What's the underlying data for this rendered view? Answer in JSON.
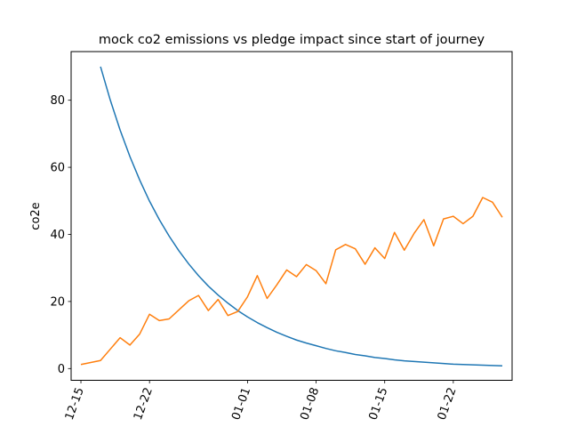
{
  "chart_data": {
    "type": "line",
    "title": "mock co2 emissions vs pledge impact since start of journey",
    "xlabel": "",
    "ylabel": "co2e",
    "x_type": "date",
    "xlim": [
      "2023-12-14",
      "2024-01-28"
    ],
    "ylim": [
      -3.5,
      94.5
    ],
    "x_ticks": [
      "2023-12-15",
      "2023-12-22",
      "2024-01-01",
      "2024-01-08",
      "2024-01-15",
      "2024-01-22"
    ],
    "x_tick_labels": [
      "12-15",
      "12-22",
      "01-01",
      "01-08",
      "01-15",
      "01-22"
    ],
    "y_ticks": [
      0,
      20,
      40,
      60,
      80
    ],
    "grid": false,
    "legend": "none",
    "series": [
      {
        "color": "#1f77b4",
        "x": [
          "2023-12-17",
          "2023-12-18",
          "2023-12-19",
          "2023-12-20",
          "2023-12-21",
          "2023-12-22",
          "2023-12-23",
          "2023-12-24",
          "2023-12-25",
          "2023-12-26",
          "2023-12-27",
          "2023-12-28",
          "2023-12-29",
          "2023-12-30",
          "2023-12-31",
          "2024-01-01",
          "2024-01-02",
          "2024-01-03",
          "2024-01-04",
          "2024-01-05",
          "2024-01-06",
          "2024-01-07",
          "2024-01-08",
          "2024-01-09",
          "2024-01-10",
          "2024-01-11",
          "2024-01-12",
          "2024-01-13",
          "2024-01-14",
          "2024-01-15",
          "2024-01-16",
          "2024-01-17",
          "2024-01-18",
          "2024-01-19",
          "2024-01-20",
          "2024-01-21",
          "2024-01-22",
          "2024-01-23",
          "2024-01-24",
          "2024-01-25",
          "2024-01-26",
          "2024-01-27"
        ],
        "values": [
          90.0,
          80.0,
          71.1,
          63.2,
          56.2,
          49.9,
          44.4,
          39.5,
          35.1,
          31.2,
          27.7,
          24.6,
          21.9,
          19.5,
          17.3,
          15.4,
          13.7,
          12.2,
          10.8,
          9.6,
          8.5,
          7.6,
          6.8,
          6.0,
          5.3,
          4.8,
          4.2,
          3.8,
          3.3,
          3.0,
          2.6,
          2.3,
          2.1,
          1.9,
          1.7,
          1.5,
          1.3,
          1.2,
          1.1,
          1.0,
          0.9,
          0.8
        ]
      },
      {
        "color": "#ff7f0e",
        "x": [
          "2023-12-15",
          "2023-12-16",
          "2023-12-17",
          "2023-12-18",
          "2023-12-19",
          "2023-12-20",
          "2023-12-21",
          "2023-12-22",
          "2023-12-23",
          "2023-12-24",
          "2023-12-25",
          "2023-12-26",
          "2023-12-27",
          "2023-12-28",
          "2023-12-29",
          "2023-12-30",
          "2023-12-31",
          "2024-01-01",
          "2024-01-02",
          "2024-01-03",
          "2024-01-04",
          "2024-01-05",
          "2024-01-06",
          "2024-01-07",
          "2024-01-08",
          "2024-01-09",
          "2024-01-10",
          "2024-01-11",
          "2024-01-12",
          "2024-01-13",
          "2024-01-14",
          "2024-01-15",
          "2024-01-16",
          "2024-01-17",
          "2024-01-18",
          "2024-01-19",
          "2024-01-20",
          "2024-01-21",
          "2024-01-22",
          "2024-01-23",
          "2024-01-24",
          "2024-01-25",
          "2024-01-26",
          "2024-01-27"
        ],
        "values": [
          1.2,
          1.8,
          2.4,
          5.8,
          9.2,
          7.0,
          10.3,
          16.2,
          14.3,
          14.8,
          17.5,
          20.2,
          21.8,
          17.3,
          20.6,
          15.8,
          17.0,
          21.4,
          27.7,
          20.9,
          25.0,
          29.4,
          27.4,
          31.0,
          29.2,
          25.3,
          35.4,
          37.0,
          35.7,
          31.1,
          36.0,
          32.8,
          40.6,
          35.3,
          40.3,
          44.4,
          36.6,
          44.6,
          45.4,
          43.2,
          45.4,
          51.0,
          49.6,
          45.1
        ]
      }
    ]
  }
}
